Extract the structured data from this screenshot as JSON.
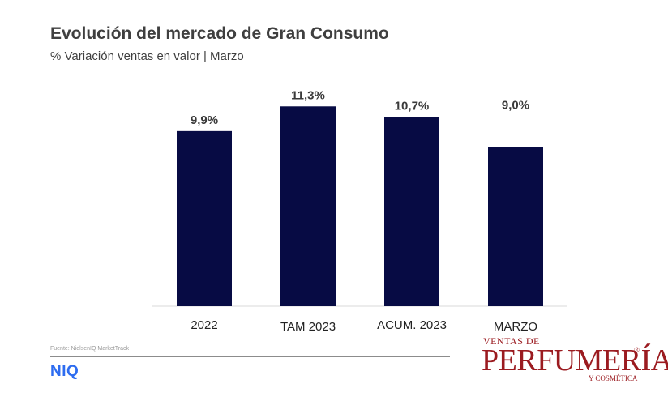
{
  "chart_data": {
    "type": "bar",
    "title": "Evolución del mercado de Gran Consumo",
    "subtitle": "% Variación ventas en valor | Marzo",
    "categories": [
      "2022",
      "TAM 2023",
      "ACUM. 2023",
      "MARZO"
    ],
    "values": [
      9.9,
      11.3,
      10.7,
      9.0
    ],
    "value_labels": [
      "9,9%",
      "11,3%",
      "10,7%",
      "9,0%"
    ],
    "ylim": [
      0,
      12
    ],
    "grid": false,
    "legend": "none",
    "bar_color": "#070b44"
  },
  "footer": {
    "source": "Fuente: NielsenIQ MarketTrack",
    "niq_logo": "NIQ",
    "brand_logo": {
      "top": "VENTAS DE",
      "main": "PERFUMERÍA",
      "registered": "®",
      "bottom": "Y COSMÉTICA"
    }
  },
  "colors": {
    "title": "#3f3f3f",
    "niq_blue": "#2d6cf0",
    "brand_red": "#9b1b20"
  }
}
